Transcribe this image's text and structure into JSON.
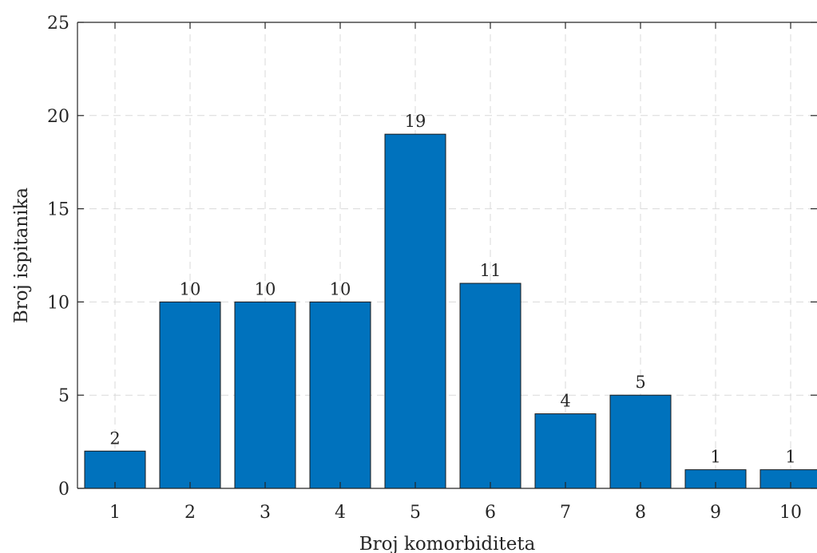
{
  "chart_data": {
    "type": "bar",
    "categories": [
      "1",
      "2",
      "3",
      "4",
      "5",
      "6",
      "7",
      "8",
      "9",
      "10"
    ],
    "values": [
      2,
      10,
      10,
      10,
      19,
      11,
      4,
      5,
      1,
      1
    ],
    "data_labels": [
      "2",
      "10",
      "10",
      "10",
      "19",
      "11",
      "4",
      "5",
      "1",
      "1"
    ],
    "title": "",
    "xlabel": "Broj komorbiditeta",
    "ylabel": "Broj ispitanika",
    "ylim": [
      0,
      25
    ],
    "yticks": [
      "0",
      "5",
      "10",
      "15",
      "20",
      "25"
    ],
    "grid": true,
    "bar_color": "#0072BD"
  }
}
